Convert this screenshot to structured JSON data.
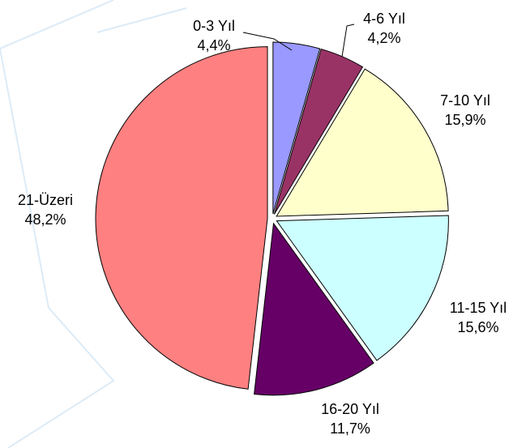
{
  "chart_data": {
    "type": "pie",
    "categories": [
      "0-3 Yıl",
      "4-6 Yıl",
      "7-10 Yıl",
      "11-15 Yıl",
      "16-20 Yıl",
      "21-Üzeri"
    ],
    "values": [
      4.4,
      4.2,
      15.9,
      15.6,
      11.7,
      48.2
    ],
    "value_labels": [
      "4,4%",
      "4,2%",
      "15,9%",
      "15,6%",
      "11,7%",
      "48,2%"
    ],
    "colors": [
      "#9999ff",
      "#993366",
      "#ffffcc",
      "#ccffff",
      "#660066",
      "#ff8080"
    ]
  }
}
